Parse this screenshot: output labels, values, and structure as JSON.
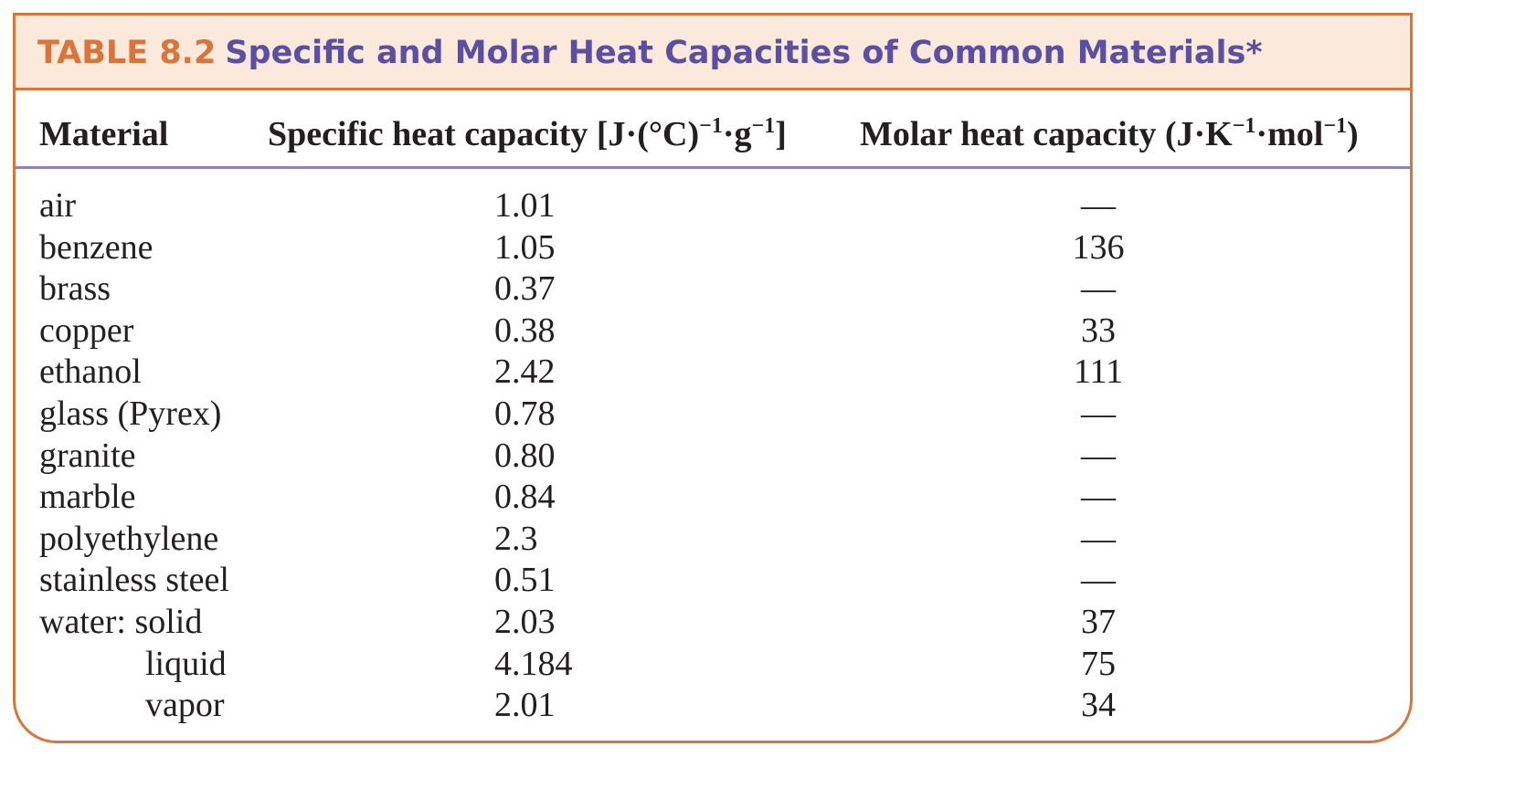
{
  "title": {
    "label": "TABLE 8.2",
    "text": "Specific and Molar Heat Capacities of Common Materials*"
  },
  "headers": {
    "material": "Material",
    "specific": "Specific heat capacity [J·(°C)",
    "specific_mid": "·g",
    "specific_end": "]",
    "molar": "Molar heat capacity (J·K",
    "molar_mid": "·mol",
    "molar_end": ")",
    "superscript": "−1"
  },
  "rows": [
    {
      "material": "air",
      "specific": "1.01",
      "molar": "—"
    },
    {
      "material": "benzene",
      "specific": "1.05",
      "molar": "136"
    },
    {
      "material": "brass",
      "specific": "0.37",
      "molar": "—"
    },
    {
      "material": "copper",
      "specific": "0.38",
      "molar": "33"
    },
    {
      "material": "ethanol",
      "specific": "2.42",
      "molar": "111"
    },
    {
      "material": "glass (Pyrex)",
      "specific": "0.78",
      "molar": "—"
    },
    {
      "material": "granite",
      "specific": "0.80",
      "molar": "—"
    },
    {
      "material": "marble",
      "specific": "0.84",
      "molar": "—"
    },
    {
      "material": "polyethylene",
      "specific": "2.3",
      "molar": "—"
    },
    {
      "material": "stainless steel",
      "specific": "0.51",
      "molar": "—"
    },
    {
      "material": "water: solid",
      "specific": "2.03",
      "molar": "37"
    },
    {
      "material": "liquid",
      "specific": "4.184",
      "molar": "75"
    },
    {
      "material": "vapor",
      "specific": "2.01",
      "molar": "34"
    }
  ],
  "colors": {
    "accent_orange": "#d9743a",
    "title_purple": "#5b4fa3",
    "header_rule": "#8e84c2",
    "title_bg": "#fbe9dc"
  }
}
